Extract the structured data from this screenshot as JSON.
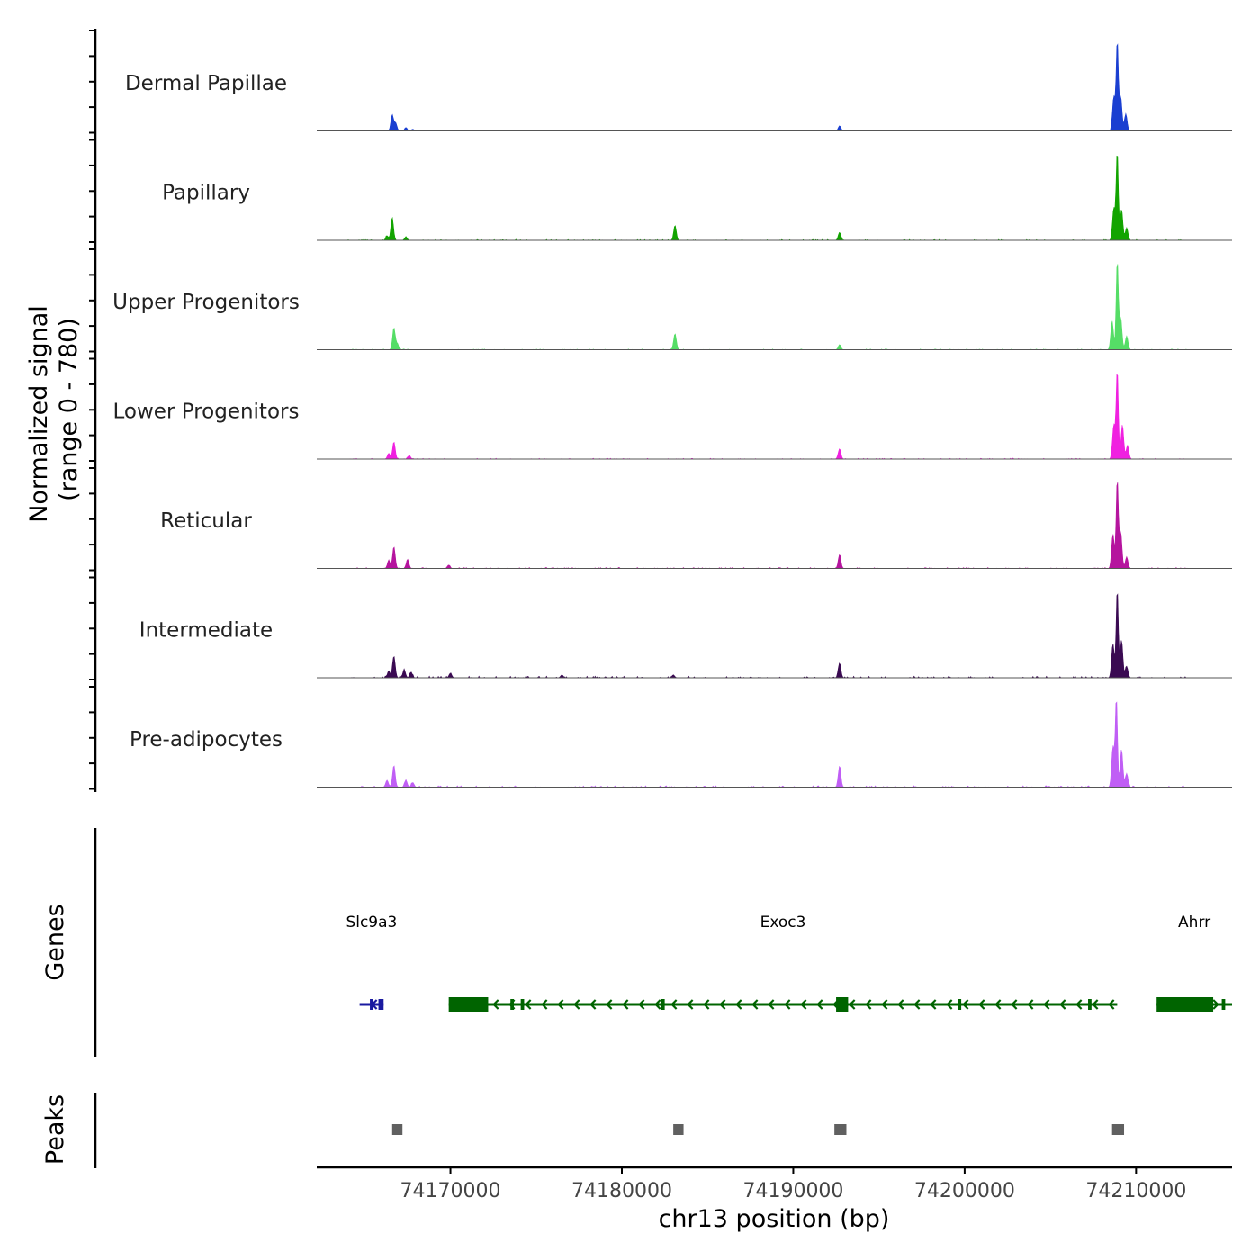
{
  "chart_data": {
    "type": "area",
    "title": "",
    "ylabel_line1": "Normalized signal",
    "ylabel_line2": "(range 0 - 780)",
    "xlabel": "chr13 position (bp)",
    "xlim": [
      74162200,
      74215600
    ],
    "ylim": [
      0,
      780
    ],
    "xticks": [
      74170000,
      74180000,
      74190000,
      74200000,
      74210000
    ],
    "xtick_labels": [
      "74170000",
      "74180000",
      "74190000",
      "74200000",
      "74210000"
    ],
    "tracks": [
      {
        "name": "Dermal Papillae",
        "color": "#1a3fd1",
        "peaks": [
          [
            74166600,
            140
          ],
          [
            74166800,
            70
          ],
          [
            74167400,
            30
          ],
          [
            74167800,
            15
          ],
          [
            74192700,
            45
          ],
          [
            74208900,
            780
          ],
          [
            74208700,
            300
          ],
          [
            74209100,
            300
          ],
          [
            74209400,
            150
          ]
        ],
        "noise": 8
      },
      {
        "name": "Papillary",
        "color": "#12a400",
        "peaks": [
          [
            74166600,
            200
          ],
          [
            74166300,
            40
          ],
          [
            74167400,
            30
          ],
          [
            74183100,
            130
          ],
          [
            74192700,
            70
          ],
          [
            74208900,
            780
          ],
          [
            74208700,
            280
          ],
          [
            74209150,
            270
          ],
          [
            74209450,
            110
          ]
        ],
        "noise": 8
      },
      {
        "name": "Upper Progenitors",
        "color": "#55dd66",
        "peaks": [
          [
            74166700,
            190
          ],
          [
            74166900,
            50
          ],
          [
            74183100,
            140
          ],
          [
            74192700,
            45
          ],
          [
            74208900,
            780
          ],
          [
            74208600,
            250
          ],
          [
            74209100,
            280
          ],
          [
            74209450,
            120
          ]
        ],
        "noise": 6
      },
      {
        "name": "Lower Progenitors",
        "color": "#f020e0",
        "peaks": [
          [
            74166700,
            150
          ],
          [
            74166400,
            50
          ],
          [
            74167600,
            30
          ],
          [
            74192700,
            90
          ],
          [
            74208900,
            780
          ],
          [
            74208700,
            300
          ],
          [
            74209200,
            300
          ],
          [
            74209500,
            120
          ]
        ],
        "noise": 7
      },
      {
        "name": "Reticular",
        "color": "#b5149e",
        "peaks": [
          [
            74166700,
            190
          ],
          [
            74166400,
            70
          ],
          [
            74167500,
            80
          ],
          [
            74169900,
            30
          ],
          [
            74192700,
            120
          ],
          [
            74208900,
            780
          ],
          [
            74208650,
            300
          ],
          [
            74209100,
            320
          ],
          [
            74209450,
            100
          ]
        ],
        "noise": 8
      },
      {
        "name": "Intermediate",
        "color": "#3a0a52",
        "peaks": [
          [
            74166700,
            190
          ],
          [
            74166400,
            60
          ],
          [
            74167300,
            70
          ],
          [
            74167700,
            50
          ],
          [
            74170000,
            40
          ],
          [
            74176500,
            25
          ],
          [
            74183000,
            25
          ],
          [
            74192700,
            130
          ],
          [
            74208900,
            780
          ],
          [
            74208650,
            300
          ],
          [
            74209150,
            330
          ],
          [
            74209450,
            100
          ]
        ],
        "noise": 14
      },
      {
        "name": "Pre-adipocytes",
        "color": "#c05ef5",
        "peaks": [
          [
            74166700,
            190
          ],
          [
            74166300,
            60
          ],
          [
            74167400,
            60
          ],
          [
            74167800,
            40
          ],
          [
            74192700,
            180
          ],
          [
            74208850,
            780
          ],
          [
            74208650,
            350
          ],
          [
            74209150,
            330
          ],
          [
            74209450,
            120
          ]
        ],
        "noise": 12
      }
    ],
    "genes_label": "Genes",
    "genes": [
      {
        "name": "Slc9a3",
        "color": "#1a1aa0",
        "start": 74164700,
        "end": 74166100,
        "strand": "-",
        "exons": [
          [
            74165800,
            74166100
          ],
          [
            74165300,
            74165400
          ]
        ]
      },
      {
        "name": "Exoc3",
        "color": "#006400",
        "start": 74169900,
        "end": 74208900,
        "strand": "-",
        "exons": [
          [
            74169900,
            74172200
          ],
          [
            74173500,
            74173700
          ],
          [
            74174100,
            74174300
          ],
          [
            74182300,
            74182500
          ],
          [
            74192500,
            74193200
          ],
          [
            74199600,
            74199800
          ],
          [
            74207200,
            74207400
          ]
        ]
      },
      {
        "name": "Ahrr",
        "color": "#006400",
        "start": 74211200,
        "end": 74215600,
        "strand": "+",
        "exons": [
          [
            74211200,
            74214500
          ],
          [
            74215000,
            74215200
          ]
        ]
      }
    ],
    "peaks_label": "Peaks",
    "peak_regions": [
      [
        74166600,
        74167200
      ],
      [
        74183000,
        74183600
      ],
      [
        74192400,
        74193100
      ],
      [
        74208600,
        74209300
      ]
    ]
  }
}
